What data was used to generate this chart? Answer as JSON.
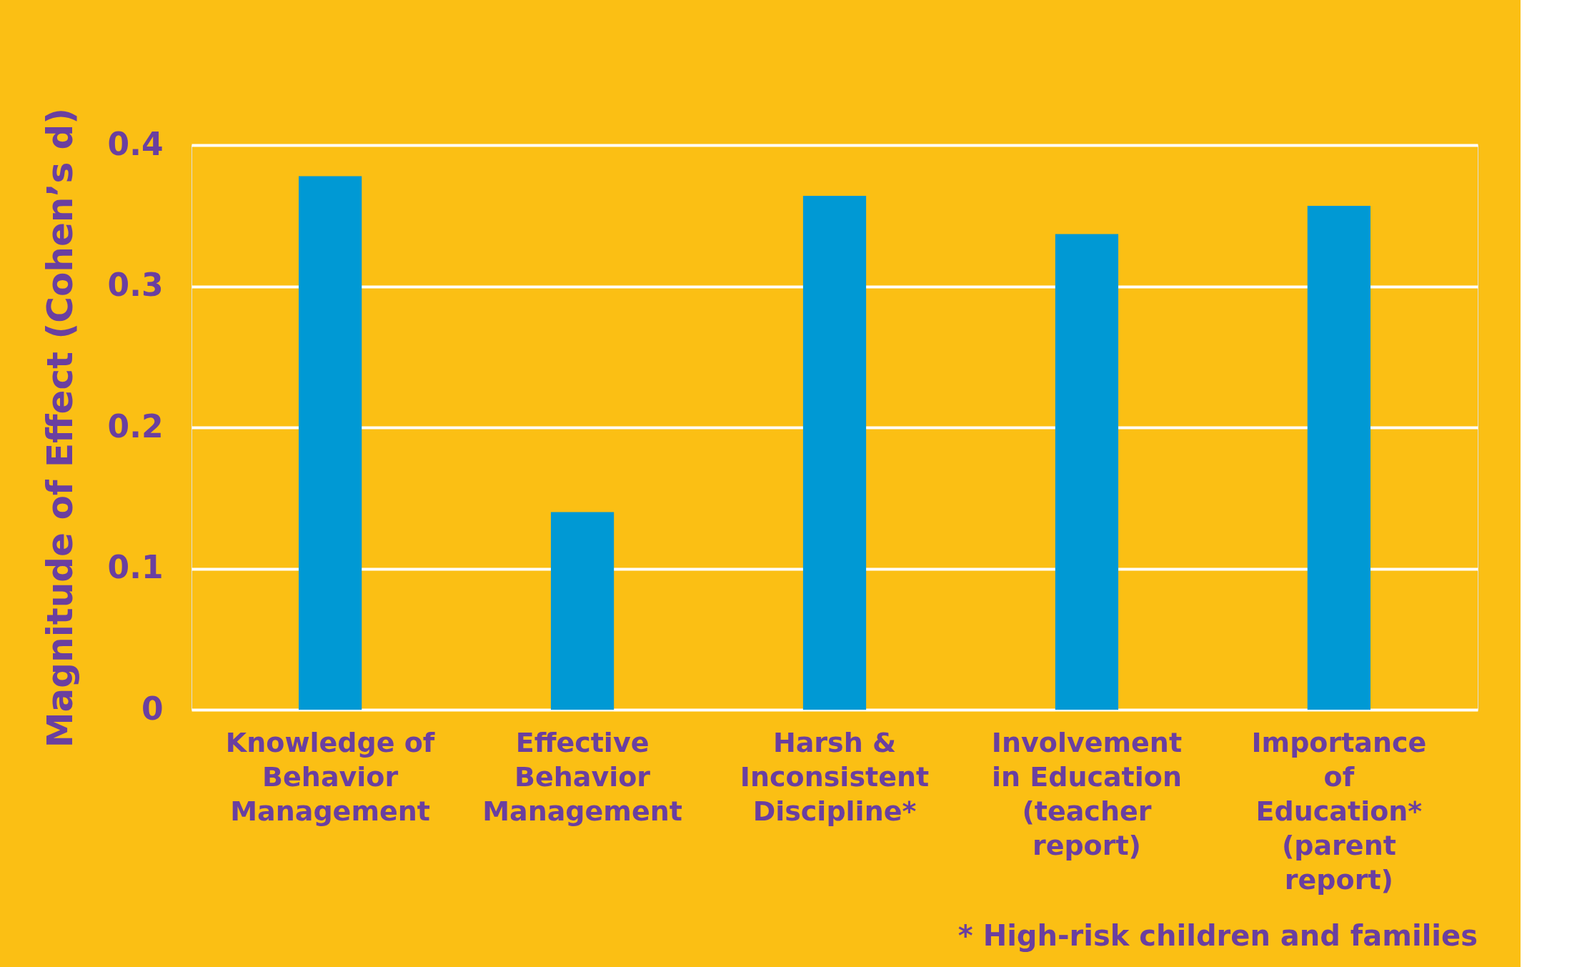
{
  "chart_data": {
    "type": "bar",
    "ylabel": "Magnitude of Effect (Cohen’s d)",
    "categories": [
      "Knowledge of Behavior Management",
      "Effective Behavior Management",
      "Harsh & Inconsistent Discipline*",
      "Involvement in Education (teacher report)",
      "Importance of Education* (parent report)"
    ],
    "values": [
      0.378,
      0.14,
      0.364,
      0.337,
      0.357
    ],
    "color": "#0099d4",
    "ylim": [
      0,
      0.4
    ],
    "yticks": [
      {
        "value": 0,
        "label": "0"
      },
      0.1,
      0.2,
      0.3,
      0.4
    ],
    "grid": "y",
    "annotations": [
      "* High-risk children and families"
    ]
  }
}
